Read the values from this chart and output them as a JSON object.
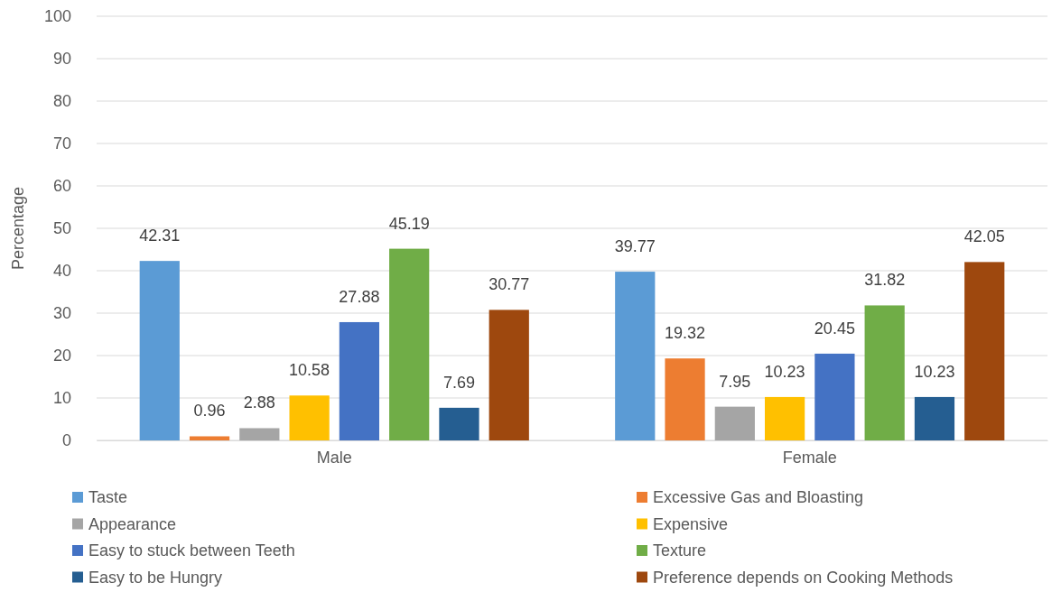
{
  "chart_data": {
    "type": "bar",
    "ylabel": "Percentage",
    "categories": [
      "Male",
      "Female"
    ],
    "series": [
      {
        "name": "Taste",
        "color": "#5b9bd5",
        "values": [
          42.31,
          39.77
        ]
      },
      {
        "name": "Excessive Gas and Bloasting",
        "color": "#ed7d31",
        "values": [
          0.96,
          19.32
        ]
      },
      {
        "name": "Appearance",
        "color": "#a5a5a5",
        "values": [
          2.88,
          7.95
        ]
      },
      {
        "name": "Expensive",
        "color": "#ffc000",
        "values": [
          10.58,
          10.23
        ]
      },
      {
        "name": "Easy to stuck between Teeth",
        "color": "#4472c4",
        "values": [
          27.88,
          20.45
        ]
      },
      {
        "name": "Texture",
        "color": "#70ad47",
        "values": [
          45.19,
          31.82
        ]
      },
      {
        "name": "Easy to be Hungry",
        "color": "#255e91",
        "values": [
          7.69,
          10.23
        ]
      },
      {
        "name": "Preference depends on Cooking Methods",
        "color": "#9e480e",
        "values": [
          30.77,
          42.05
        ]
      }
    ],
    "ylim": [
      0,
      100
    ],
    "yticks": [
      0,
      10,
      20,
      30,
      40,
      50,
      60,
      70,
      80,
      90,
      100
    ],
    "grid": "y",
    "legend": "bottom",
    "data_labels": true
  }
}
